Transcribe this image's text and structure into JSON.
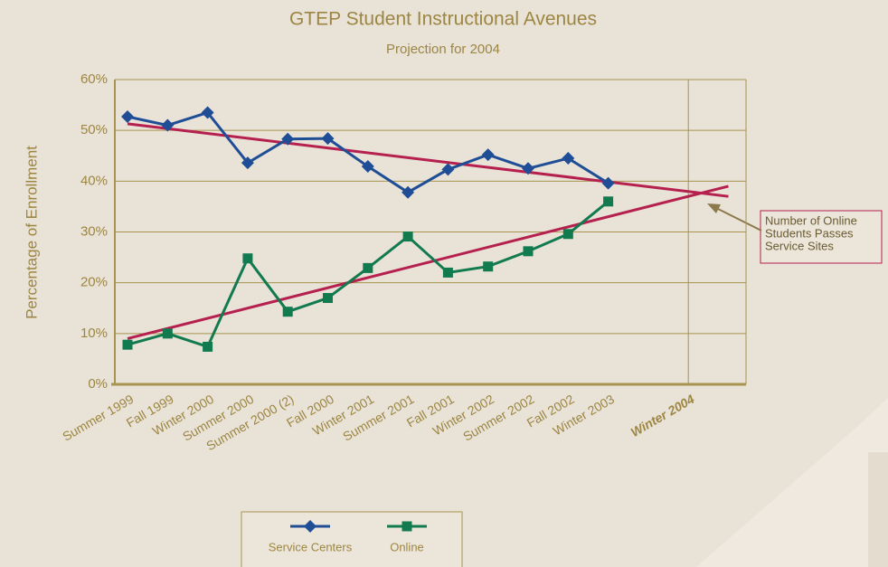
{
  "chart_data": {
    "type": "line",
    "title": "GTEP Student Instructional Avenues",
    "subtitle": "Projection for 2004",
    "y_label": "Percentage of Enrollment",
    "categories": [
      "Summer 1999",
      "Fall 1999",
      "Winter 2000",
      "Summer 2000",
      "Summer 2000 (2)",
      "Fall 2000",
      "Winter 2001",
      "Summer 2001",
      "Fall 2001",
      "Winter 2002",
      "Summer 2002",
      "Fall 2002",
      "Winter 2003",
      null,
      "Winter 2004",
      null
    ],
    "series": [
      {
        "name": "Service Centers",
        "color": "#1f4e96",
        "marker": "diamond",
        "values": [
          52.7,
          51,
          53.5,
          43.6,
          48.3,
          48.4,
          42.9,
          37.8,
          42.3,
          45.2,
          42.5,
          44.5,
          39.6,
          null,
          null,
          null
        ]
      },
      {
        "name": "Online",
        "color": "#117a4f",
        "marker": "square",
        "values": [
          7.8,
          10,
          7.4,
          24.8,
          14.3,
          17,
          22.9,
          29.1,
          22,
          23.2,
          26.2,
          29.6,
          36,
          null,
          null,
          null
        ]
      }
    ],
    "trendlines": [
      {
        "color": "#b5204f",
        "values": [
          51.3,
          37
        ]
      },
      {
        "color": "#b5204f",
        "values": [
          9,
          39
        ]
      }
    ],
    "ylim": [
      0,
      60
    ],
    "yticks": [
      {
        "value": 0,
        "label": "0%"
      },
      {
        "value": 10,
        "label": "10%"
      },
      {
        "value": 20,
        "label": "20%"
      },
      {
        "value": 30,
        "label": "30%"
      },
      {
        "value": 40,
        "label": "40%"
      },
      {
        "value": 50,
        "label": "50%"
      },
      {
        "value": 60,
        "label": "60%"
      }
    ],
    "grid": true,
    "annotation": {
      "lines": [
        "Number of Online",
        "Students Passes",
        "Service Sites"
      ]
    }
  }
}
